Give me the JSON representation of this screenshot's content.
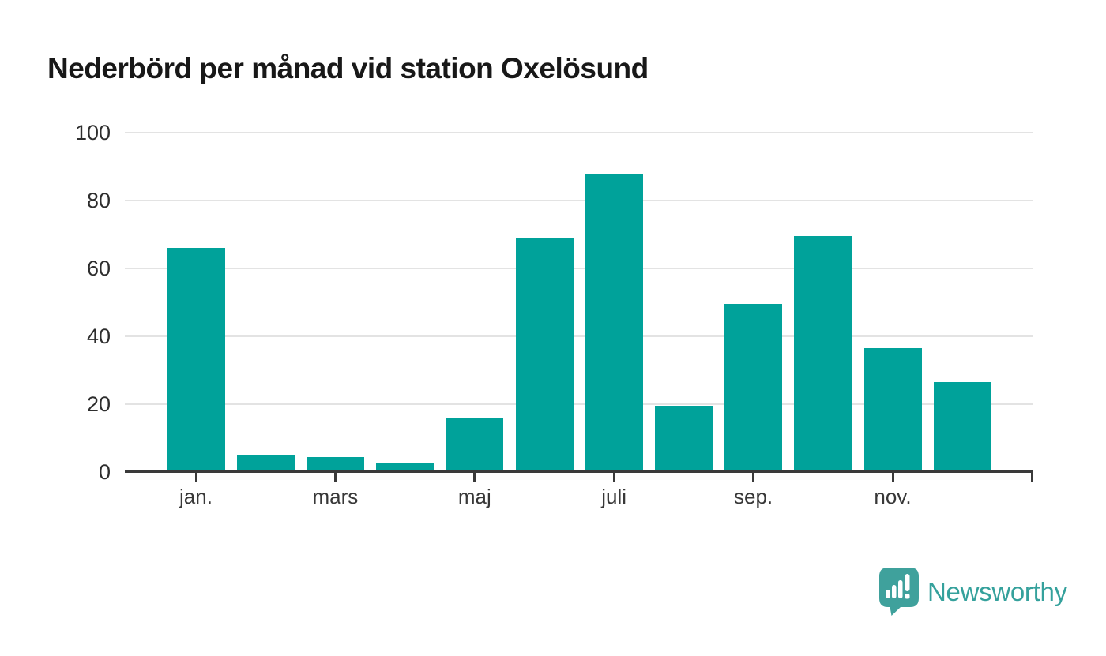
{
  "chart_data": {
    "type": "bar",
    "title": "Nederbörd per månad vid station Oxelösund",
    "categories": [
      "jan.",
      "",
      "mars",
      "",
      "maj",
      "",
      "juli",
      "",
      "sep.",
      "",
      "nov.",
      ""
    ],
    "values": [
      66,
      5,
      4.5,
      2.5,
      16,
      69,
      88,
      19.5,
      49.5,
      69.5,
      36.5,
      26.5
    ],
    "x_ticks": [
      {
        "index": 0,
        "label": "jan."
      },
      {
        "index": 2,
        "label": "mars"
      },
      {
        "index": 4,
        "label": "maj"
      },
      {
        "index": 6,
        "label": "juli"
      },
      {
        "index": 8,
        "label": "sep."
      },
      {
        "index": 10,
        "label": "nov."
      }
    ],
    "y_ticks": [
      0,
      20,
      40,
      60,
      80,
      100
    ],
    "ylim": [
      0,
      100
    ],
    "xlabel": "",
    "ylabel": "",
    "grid": true,
    "legend": null,
    "bar_color": "#00a29a"
  },
  "colors": {
    "bar": "#00a29a",
    "axis": "#3a3a3a",
    "gridline": "#e3e3e3",
    "title": "#181818",
    "logo": "#3fa19c",
    "logo_text": "#35a19c"
  },
  "branding": {
    "logo_text": "Newsworthy"
  }
}
